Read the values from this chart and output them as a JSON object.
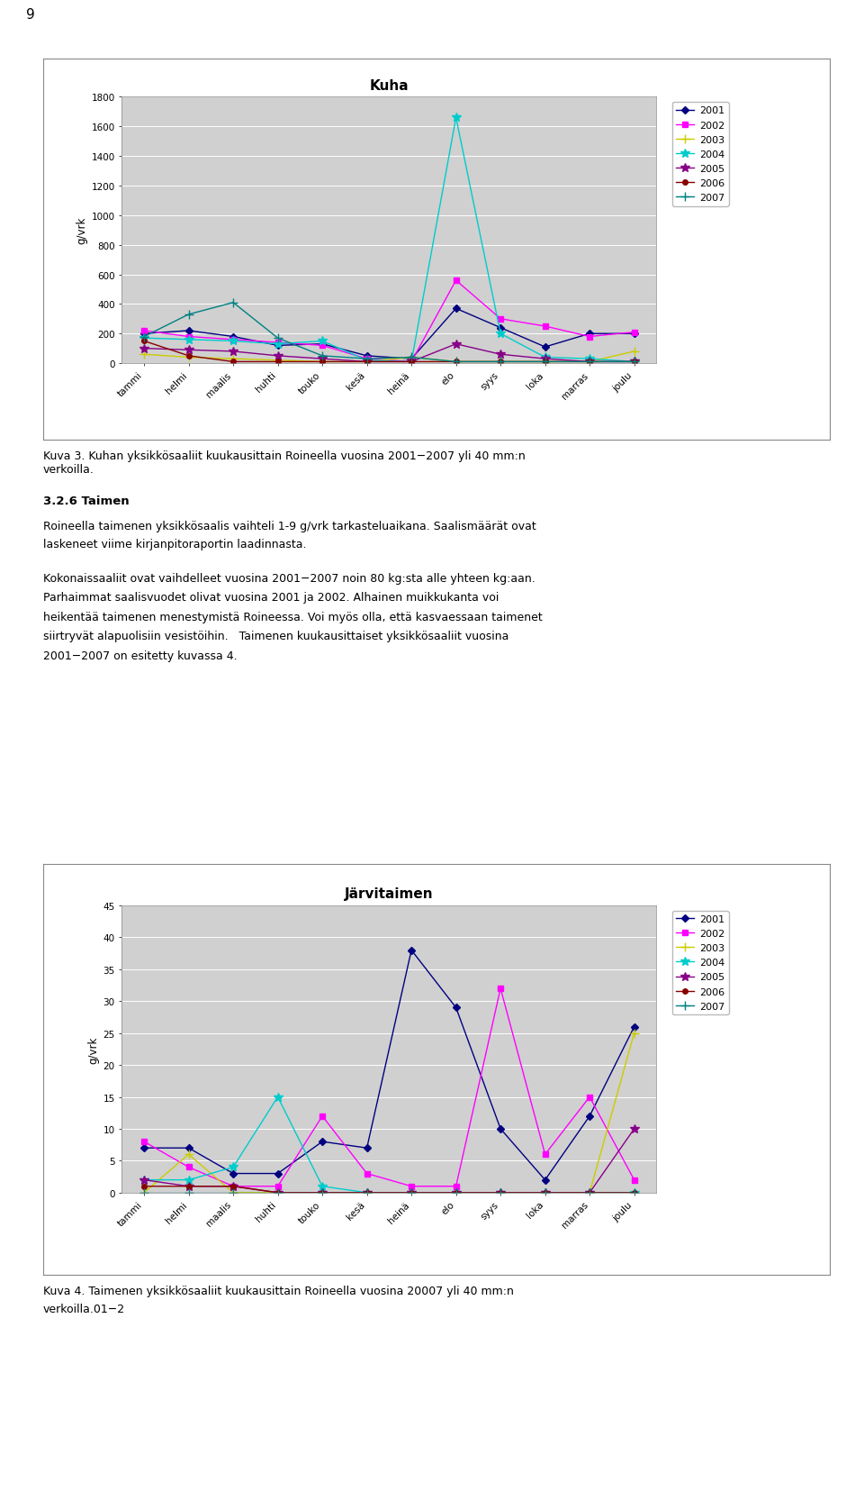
{
  "chart1": {
    "title": "Kuha",
    "ylabel": "g/vrk",
    "months": [
      "tammi",
      "helmi",
      "maalis",
      "huhti",
      "touko",
      "kesä",
      "heinä",
      "elo",
      "syys",
      "loka",
      "marras",
      "joulu"
    ],
    "ylim": [
      0,
      1800
    ],
    "yticks": [
      0,
      200,
      400,
      600,
      800,
      1000,
      1200,
      1400,
      1600,
      1800
    ],
    "series": {
      "2001": {
        "color": "#000080",
        "marker": "D",
        "markersize": 4,
        "data": [
          200,
          220,
          180,
          120,
          130,
          50,
          30,
          370,
          240,
          110,
          200,
          200
        ]
      },
      "2002": {
        "color": "#FF00FF",
        "marker": "s",
        "markersize": 4,
        "data": [
          220,
          180,
          160,
          140,
          120,
          30,
          10,
          560,
          300,
          250,
          180,
          210
        ]
      },
      "2003": {
        "color": "#CCCC00",
        "marker": "+",
        "markersize": 6,
        "data": [
          60,
          40,
          30,
          20,
          10,
          10,
          40,
          10,
          10,
          10,
          10,
          80
        ]
      },
      "2004": {
        "color": "#00CCCC",
        "marker": "*",
        "markersize": 7,
        "data": [
          170,
          160,
          150,
          130,
          150,
          20,
          10,
          1660,
          200,
          40,
          30,
          10
        ]
      },
      "2005": {
        "color": "#880088",
        "marker": "*",
        "markersize": 7,
        "data": [
          100,
          90,
          80,
          50,
          30,
          10,
          10,
          130,
          60,
          30,
          10,
          10
        ]
      },
      "2006": {
        "color": "#880000",
        "marker": "o",
        "markersize": 4,
        "data": [
          150,
          50,
          10,
          10,
          10,
          10,
          10,
          10,
          10,
          10,
          10,
          10
        ]
      },
      "2007": {
        "color": "#008080",
        "marker": "+",
        "markersize": 6,
        "data": [
          180,
          330,
          410,
          170,
          50,
          30,
          40,
          10,
          10,
          10,
          10,
          10
        ]
      }
    },
    "legend_order": [
      "2001",
      "2002",
      "2003",
      "2004",
      "2005",
      "2006",
      "2007"
    ]
  },
  "chart2": {
    "title": "Järvitaimen",
    "ylabel": "g/vrk",
    "months": [
      "tammi",
      "helmi",
      "maalis",
      "huhti",
      "touko",
      "kesä",
      "heinä",
      "elo",
      "syys",
      "loka",
      "marras",
      "joulu"
    ],
    "ylim": [
      0,
      45
    ],
    "yticks": [
      0,
      5,
      10,
      15,
      20,
      25,
      30,
      35,
      40,
      45
    ],
    "series": {
      "2001": {
        "color": "#000080",
        "marker": "D",
        "markersize": 4,
        "data": [
          7,
          7,
          3,
          3,
          8,
          7,
          38,
          29,
          10,
          2,
          12,
          26
        ]
      },
      "2002": {
        "color": "#FF00FF",
        "marker": "s",
        "markersize": 4,
        "data": [
          8,
          4,
          1,
          1,
          12,
          3,
          1,
          1,
          32,
          6,
          15,
          2
        ]
      },
      "2003": {
        "color": "#CCCC00",
        "marker": "+",
        "markersize": 6,
        "data": [
          0,
          6,
          0,
          0,
          0,
          0,
          0,
          0,
          0,
          0,
          0,
          25
        ]
      },
      "2004": {
        "color": "#00CCCC",
        "marker": "*",
        "markersize": 7,
        "data": [
          2,
          2,
          4,
          15,
          1,
          0,
          0,
          0,
          0,
          0,
          0,
          0
        ]
      },
      "2005": {
        "color": "#880088",
        "marker": "*",
        "markersize": 7,
        "data": [
          2,
          1,
          1,
          0,
          0,
          0,
          0,
          0,
          0,
          0,
          0,
          10
        ]
      },
      "2006": {
        "color": "#880000",
        "marker": "o",
        "markersize": 4,
        "data": [
          1,
          1,
          1,
          0,
          0,
          0,
          0,
          0,
          0,
          0,
          0,
          0
        ]
      },
      "2007": {
        "color": "#008080",
        "marker": "+",
        "markersize": 6,
        "data": [
          0,
          0,
          0,
          0,
          0,
          0,
          0,
          0,
          0,
          0,
          0,
          0
        ]
      }
    },
    "legend_order": [
      "2001",
      "2002",
      "2003",
      "2004",
      "2005",
      "2006",
      "2007"
    ]
  },
  "page_number": "9",
  "plot_bg_color": "#D0D0D0",
  "chart_frame_color": "#C8C8C8",
  "text": {
    "caption1": "Kuva 3. Kuhan yksikkösaaliit kuukausittain Roineella vuosina 2001−2007 yli 40 mm:n\nverkoilla.",
    "heading": "3.2.6 Taimen",
    "para1_line1": "Roineella taimenen yksikkösaalis vaihteli 1-9 g/vrk tarkasteluaikana. Saalismäärät ovat",
    "para1_line2": "laskeneet viime kirjanpitoraportin laadinnasta.",
    "para2_line1": "Kokonaissaaliit ovat vaihdelleet vuosina 2001−2007 noin 80 kg:sta alle yhteen kg:aan.",
    "para2_line2": "Parhaimmat saalisvuodet olivat vuosina 2001 ja 2002. Alhainen muikkukanta voi",
    "para2_line3": "heikentää taimenen menestymistä Roineessa. Voi myös olla, että kasvaessaan taimenet",
    "para2_line4": "siirtryvät alapuolisiin vesistöihin.   Taimenen kuukausittaiset yksikkösaaliit vuosina",
    "para2_line5": "2001−2007 on esitetty kuvassa 4.",
    "caption2_line1": "Kuva 4. Taimenen yksikkösaaliit kuukausittain Roineella vuosina 20007 yli 40 mm:n",
    "caption2_line2": "verkoilla.01−2"
  }
}
